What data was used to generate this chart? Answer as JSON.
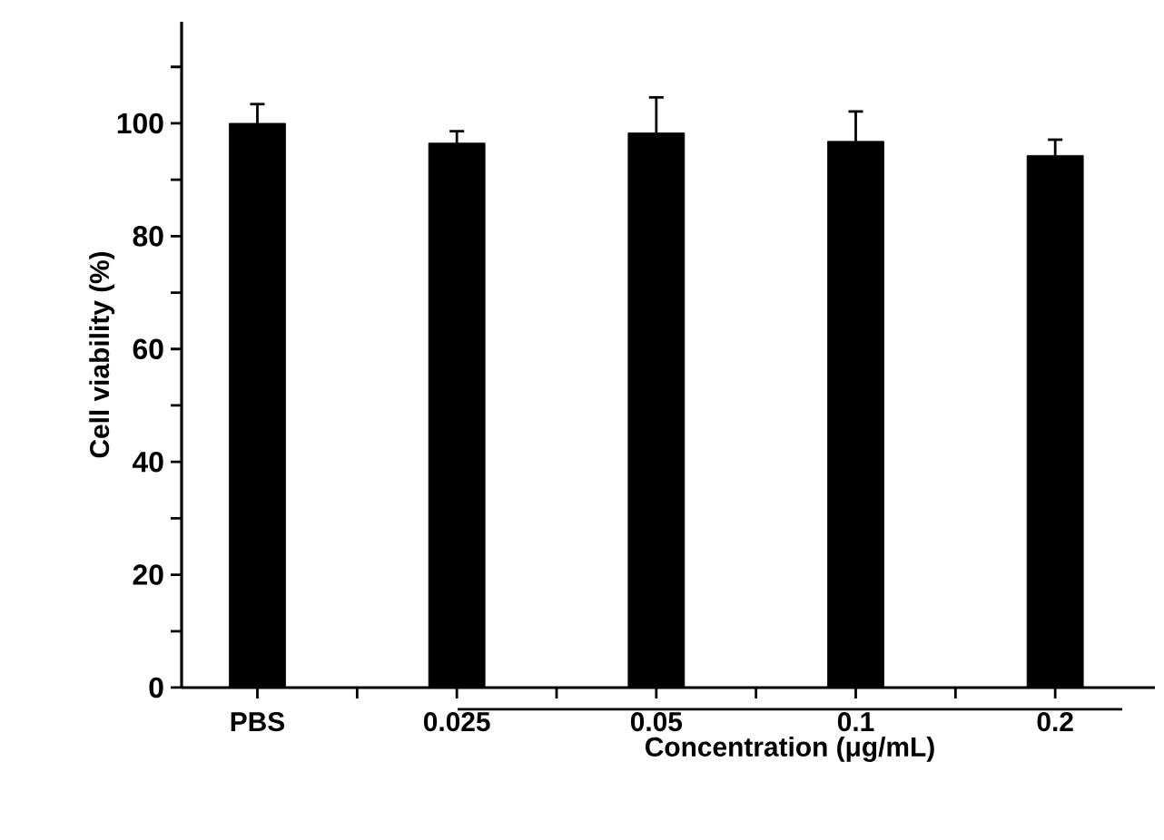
{
  "chart_data": {
    "type": "bar",
    "xlabel": "Concentration (μg/mL)",
    "ylabel": "Cell viability (%)",
    "categories": [
      "PBS",
      "0.025",
      "0.05",
      "0.1",
      "0.2"
    ],
    "values": [
      100,
      96.5,
      98.3,
      96.8,
      94.3
    ],
    "errors": [
      3.4,
      2.1,
      6.3,
      5.3,
      2.8
    ],
    "color": "#000000",
    "ylim": [
      0,
      118
    ],
    "yticks": [
      0,
      {
        "value": 10,
        "label": null
      },
      20,
      {
        "value": 30,
        "label": null
      },
      40,
      {
        "value": 50,
        "label": null
      },
      60,
      {
        "value": 70,
        "label": null
      },
      80,
      {
        "value": 90,
        "label": null
      },
      100,
      {
        "value": 110,
        "label": null
      }
    ]
  }
}
